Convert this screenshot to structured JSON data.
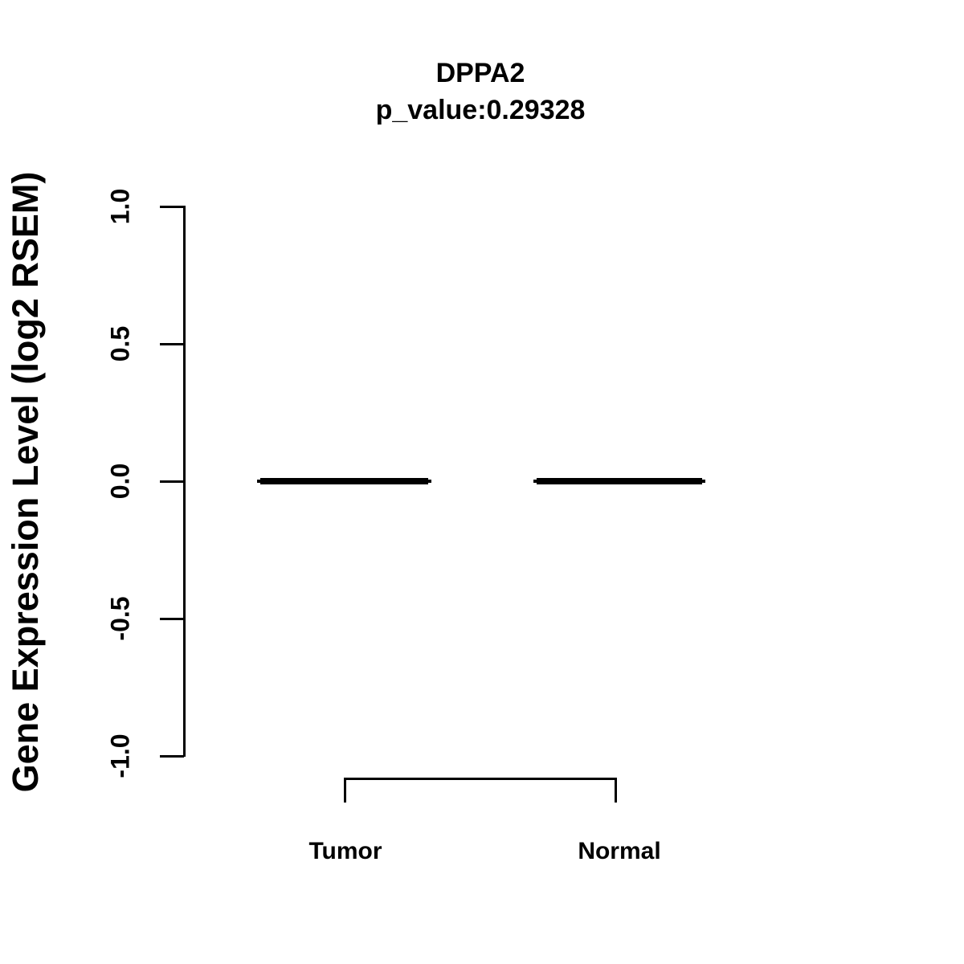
{
  "chart_data": {
    "type": "boxplot",
    "title": "DPPA2",
    "subtitle": "p_value:0.29328",
    "p_value": 0.29328,
    "gene": "DPPA2",
    "categories": [
      "Tumor",
      "Normal"
    ],
    "series": [
      {
        "name": "Tumor",
        "median": 0.0,
        "q1": 0.0,
        "q3": 0.0,
        "whisker_low": 0.0,
        "whisker_high": 0.0
      },
      {
        "name": "Normal",
        "median": 0.0,
        "q1": 0.0,
        "q3": 0.0,
        "whisker_low": 0.0,
        "whisker_high": 0.0
      }
    ],
    "xlabel": "",
    "ylabel": "Gene Expression Level (log2 RSEM)",
    "ylim": [
      -1.0,
      1.0
    ],
    "yticks": [
      1.0,
      0.5,
      0.0,
      -0.5,
      -1.0
    ],
    "ytick_labels": [
      "1.0",
      "0.5",
      "0.0",
      "-0.5",
      "-1.0"
    ],
    "grid": false,
    "legend": "none",
    "colors": {
      "foreground": "#000000",
      "background": "#ffffff"
    },
    "annotations": [
      {
        "kind": "comparison-bracket",
        "from": "Tumor",
        "to": "Normal"
      }
    ]
  }
}
